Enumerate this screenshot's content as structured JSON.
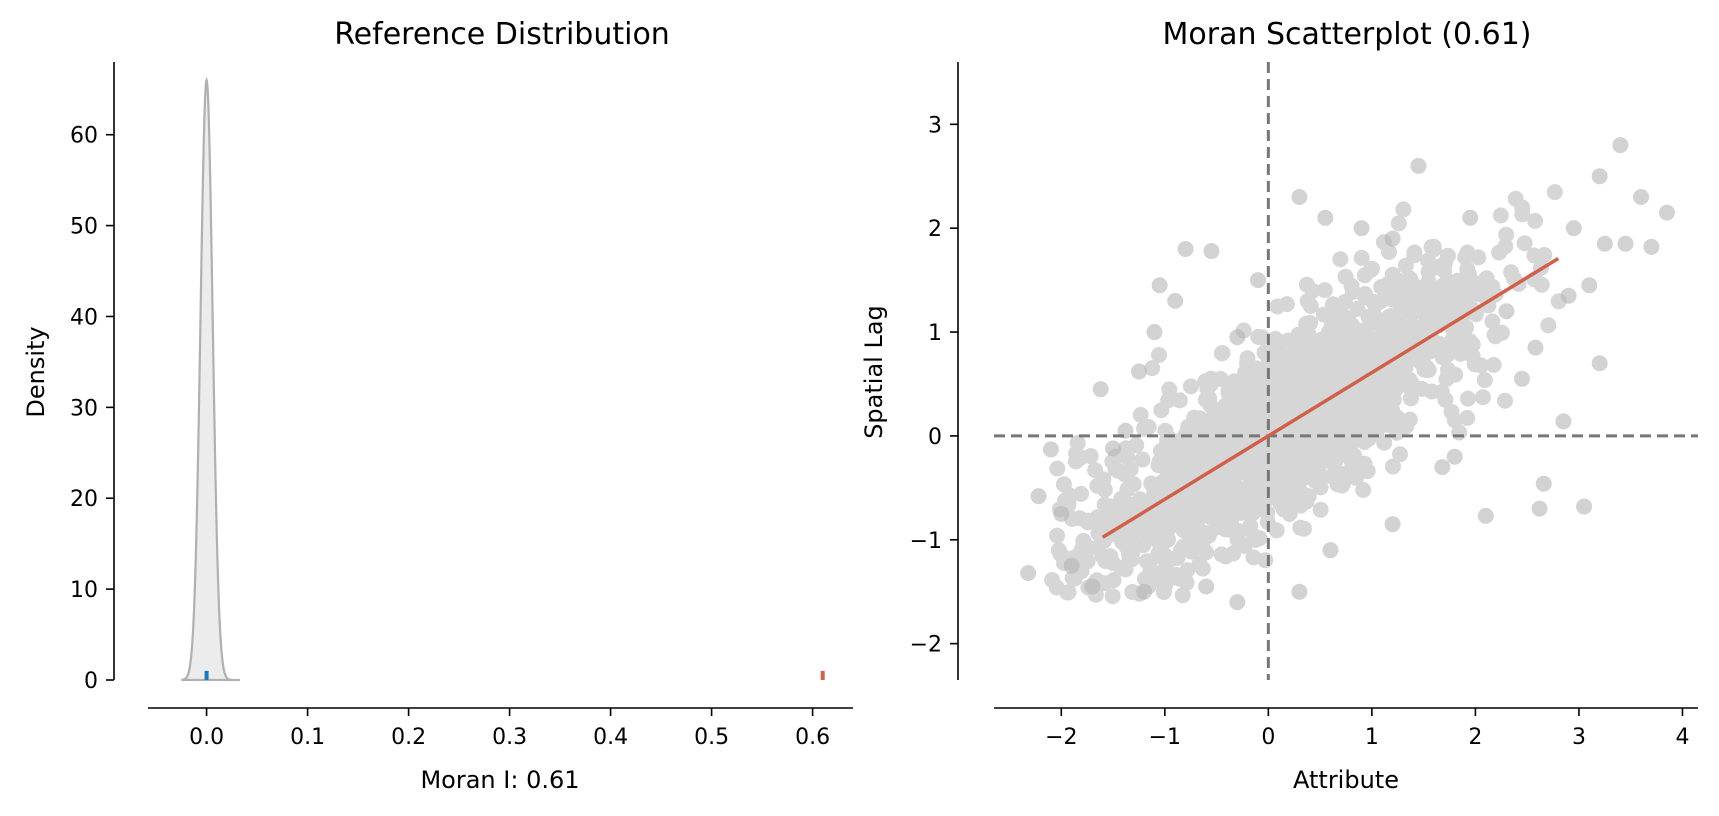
{
  "chart_data": [
    {
      "type": "area",
      "title": "Reference Distribution",
      "xlabel": "Moran I: 0.61",
      "ylabel": "Density",
      "xlim": [
        -0.058,
        0.64
      ],
      "ylim": [
        0,
        68
      ],
      "x_ticks": [
        0.0,
        0.1,
        0.2,
        0.3,
        0.4,
        0.5,
        0.6
      ],
      "x_tick_labels": [
        "0.0",
        "0.1",
        "0.2",
        "0.3",
        "0.4",
        "0.5",
        "0.6"
      ],
      "y_ticks": [
        0,
        10,
        20,
        30,
        40,
        50,
        60
      ],
      "y_tick_labels": [
        "0",
        "10",
        "20",
        "30",
        "40",
        "50",
        "60"
      ],
      "density": {
        "center": 0.0,
        "std": 0.006,
        "peak": 66,
        "x_range": [
          -0.025,
          0.033
        ]
      },
      "markers": [
        {
          "name": "expected I",
          "x": 0.0,
          "height": 1.0,
          "color": "#1f77b4"
        },
        {
          "name": "observed I",
          "x": 0.61,
          "height": 1.0,
          "color": "#d1604b"
        }
      ],
      "colors": {
        "fill": "#ececec",
        "edge": "#b0b0b0"
      },
      "grid": false
    },
    {
      "type": "scatter",
      "title": "Moran Scatterplot (0.61)",
      "xlabel": "Attribute",
      "ylabel": "Spatial Lag",
      "xlim": [
        -2.65,
        4.15
      ],
      "ylim": [
        -2.35,
        3.6
      ],
      "x_ticks": [
        -2,
        -1,
        0,
        1,
        2,
        3,
        4
      ],
      "x_tick_labels": [
        "−2",
        "−1",
        "0",
        "1",
        "2",
        "3",
        "4"
      ],
      "y_ticks": [
        -2,
        -1,
        0,
        1,
        2,
        3
      ],
      "y_tick_labels": [
        "−2",
        "−1",
        "0",
        "1",
        "2",
        "3"
      ],
      "fit_line": {
        "slope": 0.61,
        "intercept": 0.0,
        "x_range": [
          -1.6,
          2.8
        ],
        "color": "#d1604b"
      },
      "reference_lines": {
        "x": 0,
        "y": 0,
        "style": "dashed",
        "color": "#777777"
      },
      "point_color": "#b4b4b4",
      "sample_points": [
        [
          -2.32,
          -1.32
        ],
        [
          -2.22,
          -0.58
        ],
        [
          -2.1,
          -0.13
        ],
        [
          -2.0,
          -0.75
        ],
        [
          -1.9,
          -1.25
        ],
        [
          -1.62,
          0.45
        ],
        [
          -1.5,
          -0.12
        ],
        [
          -1.38,
          0.05
        ],
        [
          -1.25,
          0.62
        ],
        [
          -1.1,
          1.0
        ],
        [
          -0.9,
          1.3
        ],
        [
          -0.8,
          1.8
        ],
        [
          -0.55,
          1.78
        ],
        [
          -0.3,
          0.95
        ],
        [
          -0.1,
          1.5
        ],
        [
          0.3,
          2.3
        ],
        [
          0.55,
          2.1
        ],
        [
          0.9,
          2.0
        ],
        [
          1.2,
          1.9
        ],
        [
          1.45,
          2.6
        ],
        [
          1.95,
          2.1
        ],
        [
          2.3,
          1.2
        ],
        [
          2.58,
          0.85
        ],
        [
          2.85,
          0.14
        ],
        [
          2.66,
          -0.46
        ],
        [
          2.62,
          -0.7
        ],
        [
          3.05,
          -0.68
        ],
        [
          2.1,
          -0.77
        ],
        [
          1.68,
          -0.3
        ],
        [
          1.2,
          -0.85
        ],
        [
          0.6,
          -1.1
        ],
        [
          0.3,
          -1.5
        ],
        [
          -0.3,
          -1.6
        ],
        [
          -0.6,
          -1.45
        ],
        [
          -1.2,
          -1.5
        ],
        [
          -1.7,
          -1.45
        ],
        [
          3.2,
          2.5
        ],
        [
          3.4,
          2.8
        ],
        [
          3.6,
          2.3
        ],
        [
          3.85,
          2.15
        ],
        [
          3.7,
          1.82
        ],
        [
          3.45,
          1.85
        ],
        [
          3.25,
          1.85
        ],
        [
          2.95,
          2.0
        ],
        [
          2.9,
          1.35
        ],
        [
          3.1,
          1.45
        ],
        [
          3.2,
          0.7
        ],
        [
          2.45,
          0.55
        ],
        [
          1.8,
          -0.2
        ],
        [
          -1.05,
          1.45
        ]
      ]
    }
  ]
}
